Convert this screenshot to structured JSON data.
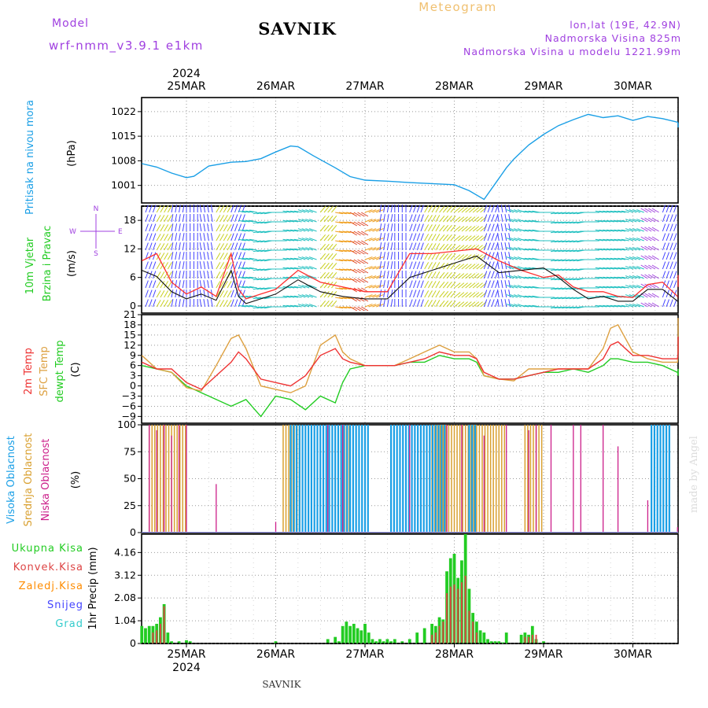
{
  "header": {
    "title": "SAVNIK",
    "product": "Meteogram",
    "model_label": "Model",
    "model_name": "wrf-nmm_v3.9.1 e1km",
    "coords": "lon,lat (19E, 42.9N)",
    "elevation": "Nadmorska Visina 825m",
    "model_elevation": "Nadmorska Visina u modelu 1221.99m",
    "footer_station": "SAVNIK",
    "credit": "made by Angel"
  },
  "time_axis": {
    "year": "2024",
    "days": [
      "25MAR",
      "26MAR",
      "27MAR",
      "28MAR",
      "29MAR",
      "30MAR"
    ]
  },
  "panels": {
    "pressure": {
      "labels": [
        "Pritisak na nivou mora",
        "(hPa)"
      ]
    },
    "wind": {
      "labels": [
        "10m Vjetar",
        "Brzina i Pravac",
        "(m/s)"
      ],
      "compass": {
        "n": "N",
        "s": "S",
        "w": "W",
        "e": "E"
      }
    },
    "temp": {
      "labels": [
        "2m Temp",
        "SFC Temp",
        "dewpt Temp",
        "(C)"
      ]
    },
    "cloud": {
      "labels": [
        "Visoka Oblacnost",
        "Srednja Oblacnost",
        "Niska Oblacnost",
        "(%)"
      ]
    },
    "precip": {
      "labels": [
        "Ukupna Kisa",
        "Konvek.Kisa",
        "Zaledj.Kisa",
        "Snijeg",
        "Grad",
        "1hr Precip (mm)"
      ]
    }
  },
  "colors": {
    "pressure": "#1a9fe6",
    "wind_speed": "#111111",
    "wind_gust": "#ff3030",
    "temp2m": "#ee3333",
    "sfc_temp": "#dda040",
    "dewpoint": "#22cc22",
    "cloud_high": "#1a9fe6",
    "cloud_mid": "#d9a030",
    "cloud_low": "#cc1f8a",
    "precip_total": "#22cc22",
    "precip_conv": "#dd4444",
    "precip_freezing": "#ff8c00",
    "snow": "#4444ff",
    "hail": "#33cccc",
    "model_title": "#a040e0"
  },
  "chart_data": [
    {
      "type": "line",
      "title": "",
      "ylabel": "(hPa)",
      "ylim": [
        996,
        1026
      ],
      "yticks": [
        1001,
        1008,
        1015,
        1022
      ],
      "x_unit": "hours from 2024-03-25 00 UTC",
      "xlim": [
        -12,
        144
      ],
      "series": [
        {
          "name": "Pritisak na nivou mora",
          "x": [
            -12,
            -8,
            -4,
            0,
            2,
            6,
            12,
            16,
            20,
            24,
            28,
            30,
            34,
            40,
            44,
            48,
            54,
            60,
            66,
            72,
            76,
            80,
            84,
            86,
            88,
            90,
            92,
            96,
            100,
            104,
            108,
            112,
            116,
            120,
            124,
            128,
            132,
            136,
            140,
            144
          ],
          "y": [
            1007.2,
            1006.2,
            1004.5,
            1003.2,
            1003.6,
            1006.5,
            1007.6,
            1007.8,
            1008.6,
            1010.5,
            1012.2,
            1012.0,
            1009.5,
            1006.0,
            1003.5,
            1002.5,
            1002.2,
            1001.8,
            1001.5,
            1001.2,
            999.5,
            997.0,
            1003.0,
            1006.0,
            1008.5,
            1010.5,
            1012.5,
            1015.5,
            1018.0,
            1019.7,
            1021.2,
            1020.3,
            1020.8,
            1019.5,
            1020.6,
            1020.0,
            1019.0,
            1018.4,
            1018.7,
            1017.5
          ]
        }
      ]
    },
    {
      "type": "line",
      "title": "",
      "ylabel": "(m/s)",
      "ylim": [
        -1.5,
        21
      ],
      "yticks": [
        0,
        6,
        12,
        18
      ],
      "x_unit": "hours from 2024-03-25 00 UTC",
      "series": [
        {
          "name": "wind speed",
          "x": [
            -12,
            -8,
            -4,
            0,
            4,
            8,
            12,
            14,
            16,
            20,
            24,
            30,
            36,
            42,
            48,
            54,
            60,
            66,
            72,
            78,
            84,
            90,
            96,
            100,
            104,
            108,
            112,
            116,
            120,
            124,
            128,
            132,
            136,
            140,
            144
          ],
          "y": [
            7.5,
            6.2,
            3.0,
            1.5,
            2.5,
            1.2,
            7.5,
            2.0,
            0.5,
            1.5,
            2.5,
            5.5,
            3.0,
            2.0,
            1.5,
            1.5,
            6.0,
            7.5,
            9.0,
            10.5,
            7.0,
            7.5,
            8.0,
            6.0,
            3.5,
            1.5,
            2.0,
            1.0,
            1.0,
            3.5,
            3.5,
            1.0,
            1.0,
            3.5,
            4.0
          ]
        },
        {
          "name": "wind gust",
          "x": [
            -12,
            -8,
            -4,
            0,
            4,
            8,
            12,
            14,
            16,
            20,
            24,
            30,
            36,
            42,
            48,
            54,
            60,
            66,
            72,
            78,
            84,
            90,
            96,
            100,
            104,
            108,
            112,
            116,
            120,
            124,
            128,
            132,
            136,
            140,
            144
          ],
          "y": [
            9.5,
            11.0,
            5.0,
            2.5,
            4.0,
            2.0,
            11.0,
            3.5,
            1.5,
            2.5,
            3.5,
            7.5,
            5.0,
            4.0,
            3.0,
            3.0,
            11.0,
            11.0,
            11.5,
            12.0,
            9.5,
            7.5,
            6.0,
            6.5,
            4.0,
            3.0,
            3.0,
            2.0,
            1.8,
            4.5,
            5.0,
            2.0,
            1.5,
            4.5,
            6.5
          ]
        }
      ],
      "wind_barbs": {
        "directions_deg_by_hour": [
          200,
          210,
          190,
          180,
          170,
          210,
          200,
          100,
          80,
          90,
          100,
          110,
          220,
          280,
          300,
          250,
          190,
          180,
          200,
          210,
          220,
          230,
          230,
          200,
          170,
          110,
          100,
          90,
          80,
          80,
          90,
          100,
          100,
          110,
          120,
          200
        ],
        "hour_step": 4,
        "hour_start": -12
      }
    },
    {
      "type": "line",
      "title": "",
      "ylabel": "(C)",
      "ylim": [
        -11,
        21
      ],
      "yticks": [
        -9,
        -6,
        -3,
        0,
        3,
        6,
        9,
        12,
        15,
        18,
        21
      ],
      "x_unit": "hours from 2024-03-25 00 UTC",
      "series": [
        {
          "name": "2m Temp",
          "x": [
            -12,
            -8,
            -4,
            0,
            4,
            8,
            12,
            14,
            16,
            20,
            24,
            28,
            32,
            36,
            40,
            42,
            44,
            48,
            52,
            56,
            60,
            64,
            68,
            72,
            76,
            78,
            80,
            84,
            88,
            92,
            96,
            100,
            104,
            108,
            112,
            114,
            116,
            120,
            124,
            128,
            132,
            136,
            140,
            144
          ],
          "y": [
            7,
            5,
            5,
            1,
            -1,
            3,
            7,
            10,
            8,
            2,
            1,
            0,
            3,
            9,
            11,
            8,
            7,
            6,
            6,
            6,
            7,
            8,
            10,
            9,
            9,
            8,
            4,
            2,
            2,
            3,
            4,
            5,
            5,
            5,
            8,
            12,
            13,
            9,
            9,
            8,
            8,
            10,
            13,
            14.5
          ]
        },
        {
          "name": "SFC Temp",
          "x": [
            -12,
            -8,
            -4,
            0,
            4,
            8,
            12,
            14,
            16,
            20,
            24,
            28,
            32,
            36,
            40,
            42,
            44,
            48,
            52,
            56,
            60,
            64,
            68,
            72,
            76,
            78,
            80,
            84,
            88,
            92,
            96,
            100,
            104,
            108,
            112,
            114,
            116,
            120,
            124,
            128,
            132,
            136,
            140,
            144
          ],
          "y": [
            9,
            5,
            4,
            -0.5,
            -1.5,
            6,
            14,
            15,
            11,
            0,
            -1,
            -2,
            0,
            12,
            15,
            10,
            8,
            6,
            6,
            6,
            8,
            10,
            12,
            10,
            10,
            8,
            3,
            2,
            1.5,
            5,
            5,
            5,
            5,
            5,
            11,
            17,
            18,
            10,
            8,
            7,
            7,
            10,
            19,
            20
          ]
        },
        {
          "name": "dewpt Temp",
          "x": [
            -12,
            -8,
            -4,
            0,
            4,
            8,
            12,
            14,
            16,
            20,
            24,
            28,
            32,
            36,
            40,
            42,
            44,
            48,
            52,
            56,
            60,
            64,
            68,
            72,
            76,
            78,
            80,
            84,
            88,
            92,
            96,
            100,
            104,
            108,
            112,
            114,
            116,
            120,
            124,
            128,
            132,
            136,
            140,
            144
          ],
          "y": [
            6,
            5,
            4,
            0,
            -2,
            -4,
            -6,
            -5,
            -4,
            -9,
            -3,
            -4,
            -7,
            -3,
            -5,
            1,
            5,
            6,
            6,
            6,
            7,
            7,
            9,
            8,
            8,
            7,
            3,
            2,
            2,
            3,
            4,
            4,
            5,
            4,
            6,
            8,
            8,
            7,
            7,
            6,
            4,
            3,
            5,
            5
          ]
        }
      ]
    },
    {
      "type": "bar",
      "title": "",
      "ylabel": "(%)",
      "ylim": [
        0,
        100
      ],
      "yticks": [
        0,
        25,
        50,
        75,
        100
      ],
      "x_unit": "hours from 2024-03-25 00 UTC",
      "series": [
        {
          "name": "Visoka Oblacnost",
          "intervals": [
            [
              28,
              49
            ],
            [
              55,
              70
            ],
            [
              76,
              78
            ],
            [
              125,
              130
            ]
          ],
          "value": 100
        },
        {
          "name": "Srednja Oblacnost",
          "intervals": [
            [
              -10,
              0
            ],
            [
              26,
              31
            ],
            [
              40,
              44
            ],
            [
              66,
              86
            ],
            [
              91,
              96
            ]
          ],
          "value": 100
        },
        {
          "name": "Niska Oblacnost",
          "x": [
            -10,
            -8,
            -6,
            -4,
            -2,
            0,
            8,
            24,
            38,
            42,
            60,
            70,
            74,
            80,
            86,
            92,
            94,
            98,
            104,
            106,
            112,
            116,
            124,
            132
          ],
          "y": [
            100,
            95,
            100,
            90,
            100,
            100,
            45,
            10,
            100,
            100,
            100,
            100,
            100,
            90,
            100,
            95,
            100,
            100,
            100,
            100,
            100,
            80,
            30,
            5
          ]
        }
      ]
    },
    {
      "type": "bar",
      "title": "",
      "ylabel": "1hr Precip (mm)",
      "ylim": [
        0,
        5.0
      ],
      "yticks": [
        0,
        1.04,
        2.08,
        3.12,
        4.16
      ],
      "x_unit": "hours from 2024-03-25 00 UTC",
      "series": [
        {
          "name": "Ukupna Kisa",
          "x": [
            -12,
            -11,
            -10,
            -9,
            -8,
            -7,
            -6,
            -5,
            -4,
            -2,
            0,
            1,
            24,
            38,
            40,
            41,
            42,
            43,
            44,
            45,
            46,
            47,
            48,
            49,
            50,
            51,
            52,
            53,
            54,
            55,
            56,
            58,
            60,
            62,
            64,
            66,
            67,
            68,
            69,
            70,
            71,
            72,
            73,
            74,
            75,
            76,
            77,
            78,
            79,
            80,
            81,
            82,
            83,
            84,
            85,
            86,
            90,
            91,
            92,
            93,
            94,
            96
          ],
          "y": [
            0.8,
            0.7,
            0.8,
            0.8,
            0.9,
            1.2,
            1.8,
            0.5,
            0.1,
            0.1,
            0.15,
            0.1,
            0.1,
            0.2,
            0.3,
            0.1,
            0.8,
            1.0,
            0.8,
            0.9,
            0.7,
            0.6,
            0.9,
            0.5,
            0.2,
            0.1,
            0.2,
            0.1,
            0.2,
            0.1,
            0.2,
            0.1,
            0.2,
            0.5,
            0.7,
            0.9,
            0.8,
            1.2,
            1.1,
            3.3,
            3.9,
            4.1,
            3.0,
            3.8,
            5.0,
            2.5,
            1.4,
            1.0,
            0.6,
            0.5,
            0.2,
            0.1,
            0.1,
            0.1,
            0.05,
            0.5,
            0.4,
            0.5,
            0.4,
            0.8,
            0.2,
            0.1
          ]
        },
        {
          "name": "Konvek.Kisa",
          "x": [
            -9,
            -8,
            -7,
            -6,
            66,
            67,
            68,
            69,
            70,
            71,
            72,
            73,
            74,
            75,
            76,
            77,
            78,
            91,
            92,
            93,
            94
          ],
          "y": [
            0.5,
            0.6,
            0.9,
            1.7,
            0.4,
            0.5,
            0.8,
            1.0,
            2.3,
            2.6,
            2.7,
            2.5,
            2.8,
            3.1,
            1.5,
            1.0,
            0.5,
            0.3,
            0.3,
            0.4,
            0.4
          ]
        }
      ]
    }
  ]
}
